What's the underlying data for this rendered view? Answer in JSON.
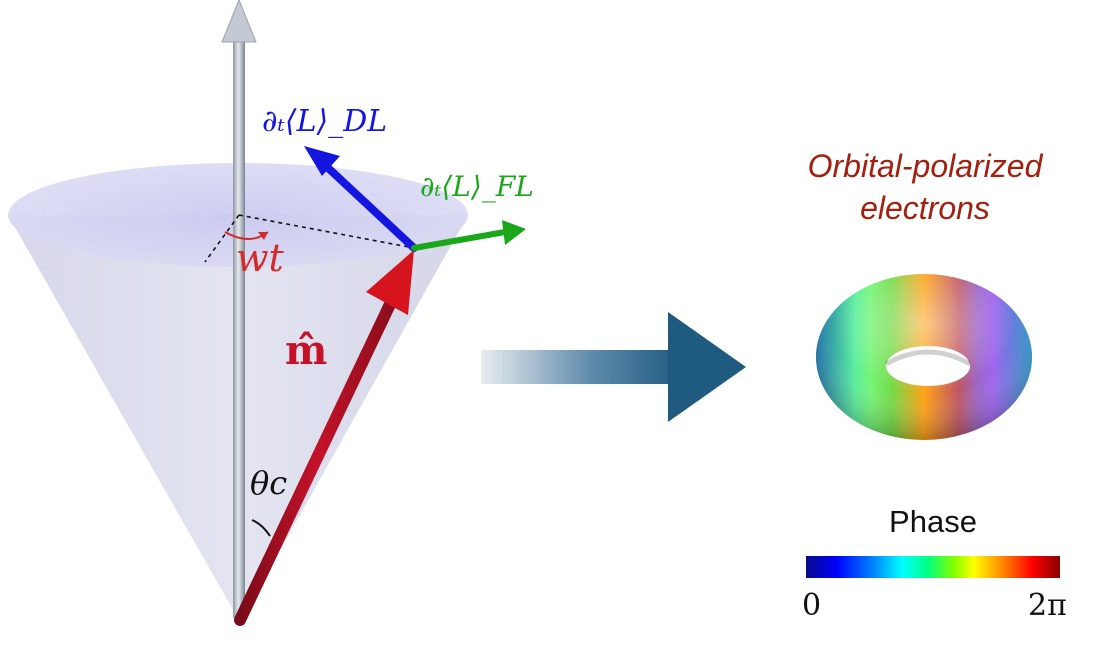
{
  "labels": {
    "dl_torque": "∂ₜ⟨L⟩_DL",
    "fl_torque": "∂ₜ⟨L⟩_FL",
    "precession": "wt",
    "magnetization": "m̂",
    "cone_angle": "θc",
    "title_line1": "Orbital-polarized",
    "title_line2": "electrons",
    "colorbar_title": "Phase",
    "colorbar_min": "0",
    "colorbar_max": "2π"
  },
  "colors": {
    "dl_arrow": "#1515e0",
    "fl_arrow": "#1aa81a",
    "magnetization_arrow": "#c4122a",
    "precession_label": "#d42a2a",
    "title_text": "#a3200f",
    "big_arrow_start": "#e8ecef",
    "big_arrow_end": "#1f5a80"
  }
}
